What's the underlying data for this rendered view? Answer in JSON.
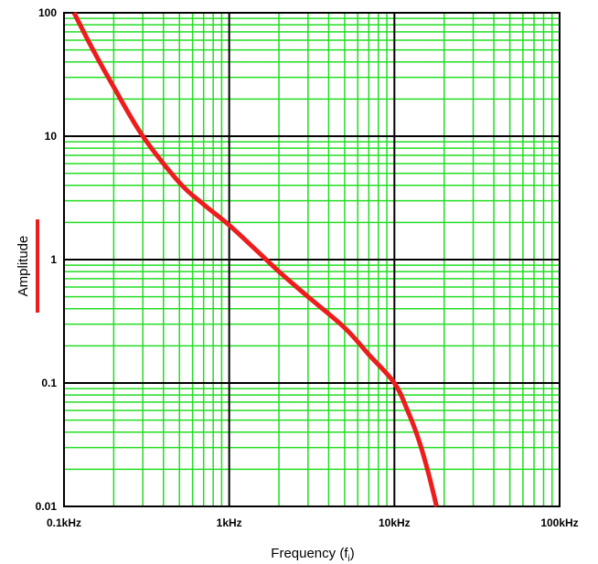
{
  "chart_data": {
    "type": "line",
    "title": "",
    "xlabel": "Frequency (f",
    "xlabel_sub": "i",
    "xlabel_close": ")",
    "ylabel": "Amplitude",
    "x_scale": "log",
    "y_scale": "log",
    "xlim": [
      100,
      100000
    ],
    "ylim": [
      0.01,
      100
    ],
    "x_ticks": [
      100,
      1000,
      10000,
      100000
    ],
    "x_tick_labels": [
      "0.1kHz",
      "1kHz",
      "10kHz",
      "100kHz"
    ],
    "y_ticks": [
      100,
      10,
      1,
      0.1,
      0.01
    ],
    "y_tick_labels": [
      "100",
      "10",
      "1",
      "0.1",
      "0.01"
    ],
    "grid": true,
    "colors": {
      "major_grid": "#000000",
      "minor_grid": "#22dd22",
      "series": "#ee1c1c",
      "ylabel_marker": "#ee1c1c"
    },
    "series": [
      {
        "values_x": [
          115,
          150,
          200,
          300,
          500,
          700,
          1000,
          1500,
          2000,
          3000,
          5000,
          7000,
          10000,
          12000,
          14000,
          16000,
          18000
        ],
        "values_y": [
          100,
          50,
          25,
          10,
          4.2,
          2.8,
          1.9,
          1.15,
          0.8,
          0.5,
          0.28,
          0.17,
          0.1,
          0.06,
          0.035,
          0.019,
          0.01
        ]
      }
    ]
  }
}
